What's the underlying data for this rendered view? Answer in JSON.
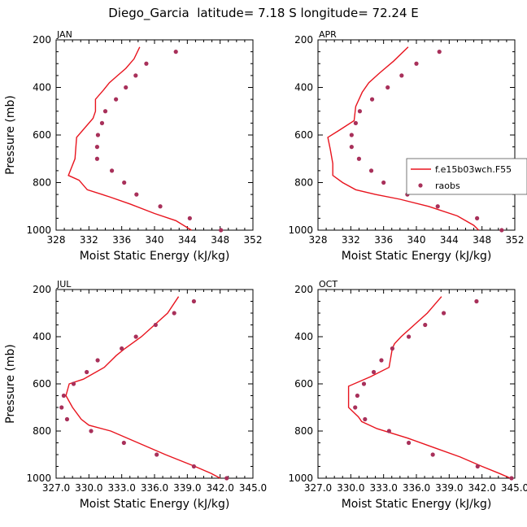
{
  "title": "Diego_Garcia  latitude= 7.18 S longitude= 72.24 E",
  "colors": {
    "model": "#e8141e",
    "obs": "#a8305a"
  },
  "legend": {
    "panel": 1,
    "entries": [
      "f.e15b03wch.F55",
      "raobs"
    ]
  },
  "chart_data": [
    {
      "type": "line",
      "panel_label": "JAN",
      "xlabel": "Moist Static Energy (kJ/kg)",
      "ylabel": "Pressure (mb)",
      "xlim": [
        328,
        352
      ],
      "ylim": [
        1000,
        200
      ],
      "xticks": [
        328,
        332,
        336,
        340,
        344,
        348,
        352
      ],
      "xtick_labels": [
        "328",
        "332",
        "336",
        "340",
        "344",
        "348",
        "352"
      ],
      "yticks": [
        200,
        400,
        600,
        800,
        1000
      ],
      "ytick_labels": [
        "200",
        "400",
        "600",
        "800",
        "1000"
      ],
      "series": [
        {
          "name": "f.e15b03wch.F55",
          "style": "line",
          "points": [
            [
              338.2,
              230
            ],
            [
              337.5,
              280
            ],
            [
              336.5,
              320
            ],
            [
              335.5,
              350
            ],
            [
              334.5,
              380
            ],
            [
              333.8,
              410
            ],
            [
              332.8,
              450
            ],
            [
              332.8,
              500
            ],
            [
              332.5,
              530
            ],
            [
              330.5,
              610
            ],
            [
              330.3,
              700
            ],
            [
              329.5,
              770
            ],
            [
              330.8,
              790
            ],
            [
              331.8,
              830
            ],
            [
              334.5,
              860
            ],
            [
              337,
              890
            ],
            [
              340,
              930
            ],
            [
              342.6,
              960
            ],
            [
              344.5,
              1000
            ]
          ]
        },
        {
          "name": "raobs",
          "style": "marker",
          "points": [
            [
              342.6,
              250
            ],
            [
              339,
              300
            ],
            [
              337.7,
              350
            ],
            [
              336.5,
              400
            ],
            [
              335.3,
              450
            ],
            [
              334,
              500
            ],
            [
              333.6,
              550
            ],
            [
              333.1,
              600
            ],
            [
              333,
              650
            ],
            [
              333,
              700
            ],
            [
              334.8,
              750
            ],
            [
              336.3,
              800
            ],
            [
              337.8,
              850
            ],
            [
              340.7,
              900
            ],
            [
              344.3,
              950
            ],
            [
              348.1,
              1000
            ]
          ]
        }
      ]
    },
    {
      "type": "line",
      "panel_label": "APR",
      "xlabel": "Moist Static Energy (kJ/kg)",
      "ylabel": "",
      "xlim": [
        328,
        352
      ],
      "ylim": [
        1000,
        200
      ],
      "xticks": [
        328,
        332,
        336,
        340,
        344,
        348,
        352
      ],
      "xtick_labels": [
        "328",
        "332",
        "336",
        "340",
        "344",
        "348",
        "352"
      ],
      "yticks": [
        200,
        400,
        600,
        800,
        1000
      ],
      "ytick_labels": [
        "200",
        "400",
        "600",
        "800",
        "1000"
      ],
      "series": [
        {
          "name": "f.e15b03wch.F55",
          "style": "line",
          "points": [
            [
              339,
              230
            ],
            [
              337.2,
              290
            ],
            [
              335.5,
              340
            ],
            [
              334.2,
              380
            ],
            [
              333.4,
              420
            ],
            [
              332.6,
              480
            ],
            [
              332.4,
              540
            ],
            [
              330.6,
              580
            ],
            [
              329.2,
              610
            ],
            [
              329.5,
              660
            ],
            [
              329.8,
              720
            ],
            [
              329.8,
              770
            ],
            [
              331,
              800
            ],
            [
              332.6,
              830
            ],
            [
              335,
              850
            ],
            [
              338,
              870
            ],
            [
              341.5,
              900
            ],
            [
              345,
              940
            ],
            [
              347,
              980
            ],
            [
              347.6,
              1000
            ]
          ]
        },
        {
          "name": "raobs",
          "style": "marker",
          "points": [
            [
              342.8,
              250
            ],
            [
              340,
              300
            ],
            [
              338.2,
              350
            ],
            [
              336.5,
              400
            ],
            [
              334.6,
              450
            ],
            [
              333.1,
              500
            ],
            [
              332.6,
              550
            ],
            [
              332.1,
              600
            ],
            [
              332.1,
              650
            ],
            [
              333,
              700
            ],
            [
              334.5,
              750
            ],
            [
              336,
              800
            ],
            [
              338.9,
              850
            ],
            [
              342.6,
              900
            ],
            [
              347.4,
              950
            ],
            [
              350.4,
              1000
            ]
          ]
        }
      ]
    },
    {
      "type": "line",
      "panel_label": "JUL",
      "xlabel": "Moist Static Energy (kJ/kg)",
      "ylabel": "Pressure (mb)",
      "xlim": [
        327,
        345
      ],
      "ylim": [
        1000,
        200
      ],
      "xticks": [
        327,
        330,
        333,
        336,
        339,
        342,
        345
      ],
      "xtick_labels": [
        "327.0",
        "330.0",
        "333.0",
        "336.0",
        "339.0",
        "342.0",
        "345.0"
      ],
      "yticks": [
        200,
        400,
        600,
        800,
        1000
      ],
      "ytick_labels": [
        "200",
        "400",
        "600",
        "800",
        "1000"
      ],
      "series": [
        {
          "name": "f.e15b03wch.F55",
          "style": "line",
          "points": [
            [
              338.2,
              230
            ],
            [
              337.2,
              300
            ],
            [
              336,
              350
            ],
            [
              334.8,
              400
            ],
            [
              333.3,
              450
            ],
            [
              332.5,
              480
            ],
            [
              331.4,
              530
            ],
            [
              329.5,
              580
            ],
            [
              328.2,
              600
            ],
            [
              327.9,
              650
            ],
            [
              328.5,
              700
            ],
            [
              329.3,
              750
            ],
            [
              330,
              775
            ],
            [
              332,
              800
            ],
            [
              334.5,
              850
            ],
            [
              337,
              900
            ],
            [
              339.7,
              950
            ],
            [
              341.2,
              980
            ],
            [
              342,
              1000
            ]
          ]
        },
        {
          "name": "raobs",
          "style": "marker",
          "points": [
            [
              339.6,
              250
            ],
            [
              337.8,
              300
            ],
            [
              336.1,
              350
            ],
            [
              334.3,
              400
            ],
            [
              333,
              450
            ],
            [
              330.8,
              500
            ],
            [
              329.8,
              550
            ],
            [
              328.6,
              600
            ],
            [
              327.7,
              650
            ],
            [
              327.5,
              700
            ],
            [
              328,
              750
            ],
            [
              330.2,
              800
            ],
            [
              333.2,
              850
            ],
            [
              336.2,
              900
            ],
            [
              339.6,
              950
            ],
            [
              342.6,
              1000
            ]
          ]
        }
      ]
    },
    {
      "type": "line",
      "panel_label": "OCT",
      "xlabel": "Moist Static Energy (kJ/kg)",
      "ylabel": "",
      "xlim": [
        327,
        345
      ],
      "ylim": [
        1000,
        200
      ],
      "xticks": [
        327,
        330,
        333,
        336,
        339,
        342,
        345
      ],
      "xtick_labels": [
        "327.0",
        "330.0",
        "333.0",
        "336.0",
        "339.0",
        "342.0",
        "345.0"
      ],
      "yticks": [
        200,
        400,
        600,
        800,
        1000
      ],
      "ytick_labels": [
        "200",
        "400",
        "600",
        "800",
        "1000"
      ],
      "series": [
        {
          "name": "f.e15b03wch.F55",
          "style": "line",
          "points": [
            [
              338.3,
              230
            ],
            [
              337,
              300
            ],
            [
              335.8,
              350
            ],
            [
              334.6,
              400
            ],
            [
              334,
              430
            ],
            [
              333.8,
              450
            ],
            [
              333.5,
              530
            ],
            [
              331.8,
              570
            ],
            [
              329.8,
              610
            ],
            [
              329.8,
              700
            ],
            [
              330.7,
              740
            ],
            [
              331,
              760
            ],
            [
              332.4,
              790
            ],
            [
              335.2,
              830
            ],
            [
              337.6,
              870
            ],
            [
              340,
              910
            ],
            [
              342,
              950
            ],
            [
              343.6,
              980
            ],
            [
              344.6,
              1000
            ]
          ]
        },
        {
          "name": "raobs",
          "style": "marker",
          "points": [
            [
              341.5,
              250
            ],
            [
              338.5,
              300
            ],
            [
              336.8,
              350
            ],
            [
              335.3,
              400
            ],
            [
              333.8,
              450
            ],
            [
              332.8,
              500
            ],
            [
              332.1,
              550
            ],
            [
              331.2,
              600
            ],
            [
              330.6,
              650
            ],
            [
              330.4,
              700
            ],
            [
              331.3,
              750
            ],
            [
              333.5,
              800
            ],
            [
              335.3,
              850
            ],
            [
              337.5,
              900
            ],
            [
              341.6,
              950
            ],
            [
              344.7,
              1000
            ]
          ]
        }
      ]
    }
  ]
}
